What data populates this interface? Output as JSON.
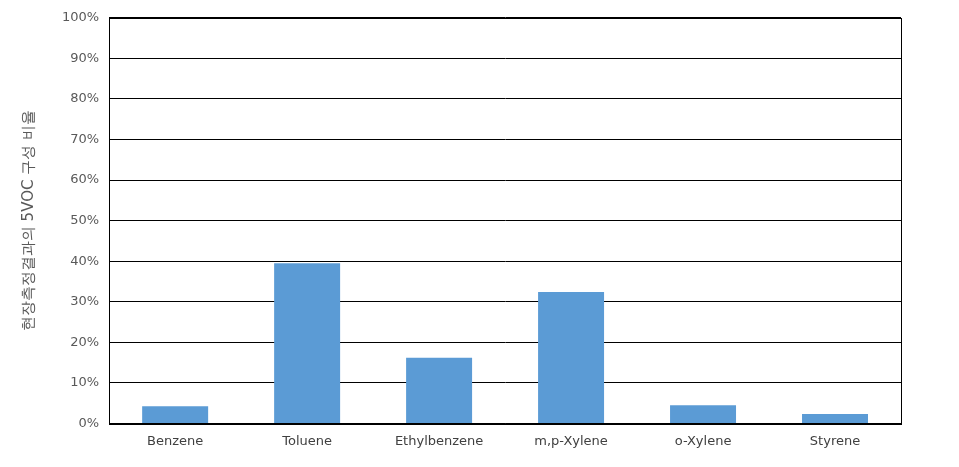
{
  "chart_data": {
    "type": "bar",
    "y_label": "현장측정결과의 5VOC 구성 비율",
    "categories": [
      "Benzene",
      "Toluene",
      "Ethylbenzene",
      "m,p-Xylene",
      "o-Xylene",
      "Styrene"
    ],
    "values": [
      4.2,
      39.5,
      16.2,
      32.4,
      4.5,
      2.3
    ],
    "color": "#5b9bd5",
    "ylim": [
      0,
      100
    ],
    "yticks": [
      {
        "value": 0,
        "label": "0%"
      },
      {
        "value": 10,
        "label": "10%"
      },
      {
        "value": 20,
        "label": "20%"
      },
      {
        "value": 30,
        "label": "30%"
      },
      {
        "value": 40,
        "label": "40%"
      },
      {
        "value": 50,
        "label": "50%"
      },
      {
        "value": 60,
        "label": "60%"
      },
      {
        "value": 70,
        "label": "70%"
      },
      {
        "value": 80,
        "label": "80%"
      },
      {
        "value": 90,
        "label": "90%"
      },
      {
        "value": 100,
        "label": "100%"
      }
    ],
    "grid": true
  }
}
